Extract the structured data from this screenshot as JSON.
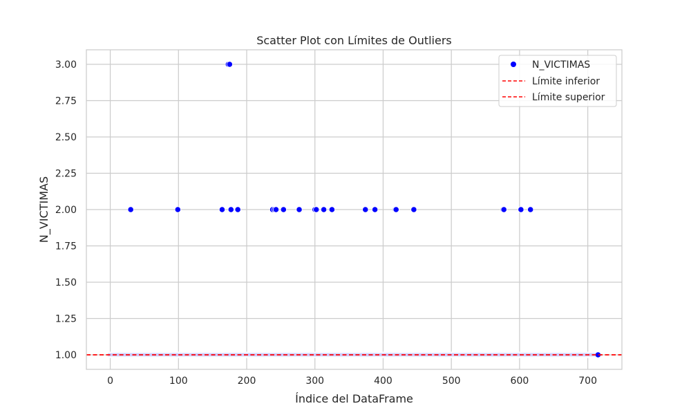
{
  "chart_data": {
    "type": "scatter",
    "title": "Scatter Plot con Límites de Outliers",
    "xlabel": "Índice del DataFrame",
    "ylabel": "N_VICTIMAS",
    "xlim": [
      -35,
      750
    ],
    "ylim": [
      0.9,
      3.1
    ],
    "xticks": [
      0,
      100,
      200,
      300,
      400,
      500,
      600,
      700
    ],
    "yticks": [
      1.0,
      1.25,
      1.5,
      1.75,
      2.0,
      2.25,
      2.5,
      2.75,
      3.0
    ],
    "ytick_labels": [
      "1.00",
      "1.25",
      "1.50",
      "1.75",
      "2.00",
      "2.25",
      "2.50",
      "2.75",
      "3.00"
    ],
    "xtick_labels": [
      "0",
      "100",
      "200",
      "300",
      "400",
      "500",
      "600",
      "700"
    ],
    "grid": true,
    "legend_position": "top-right",
    "series": [
      {
        "name": "N_VICTIMAS",
        "kind": "points",
        "color": "#0000ff",
        "outliers_x": [
          173,
          175,
          30,
          99,
          164,
          177,
          187,
          238,
          241,
          243,
          254,
          277,
          300,
          302,
          313,
          325,
          374,
          388,
          418,
          419,
          445,
          576,
          577,
          602,
          616
        ],
        "outliers_y": [
          3,
          3,
          2,
          2,
          2,
          2,
          2,
          2,
          2,
          2,
          2,
          2,
          2,
          2,
          2,
          2,
          2,
          2,
          2,
          2,
          2,
          2,
          2,
          2,
          2
        ],
        "baseline_y": 1,
        "baseline_x_range": [
          0,
          715
        ]
      },
      {
        "name": "Límite inferior",
        "kind": "hline",
        "y": 1.0,
        "color": "#ff0000",
        "dash": "dashed"
      },
      {
        "name": "Límite superior",
        "kind": "hline",
        "y": 1.0,
        "color": "#ff0000",
        "dash": "dashed"
      }
    ]
  }
}
